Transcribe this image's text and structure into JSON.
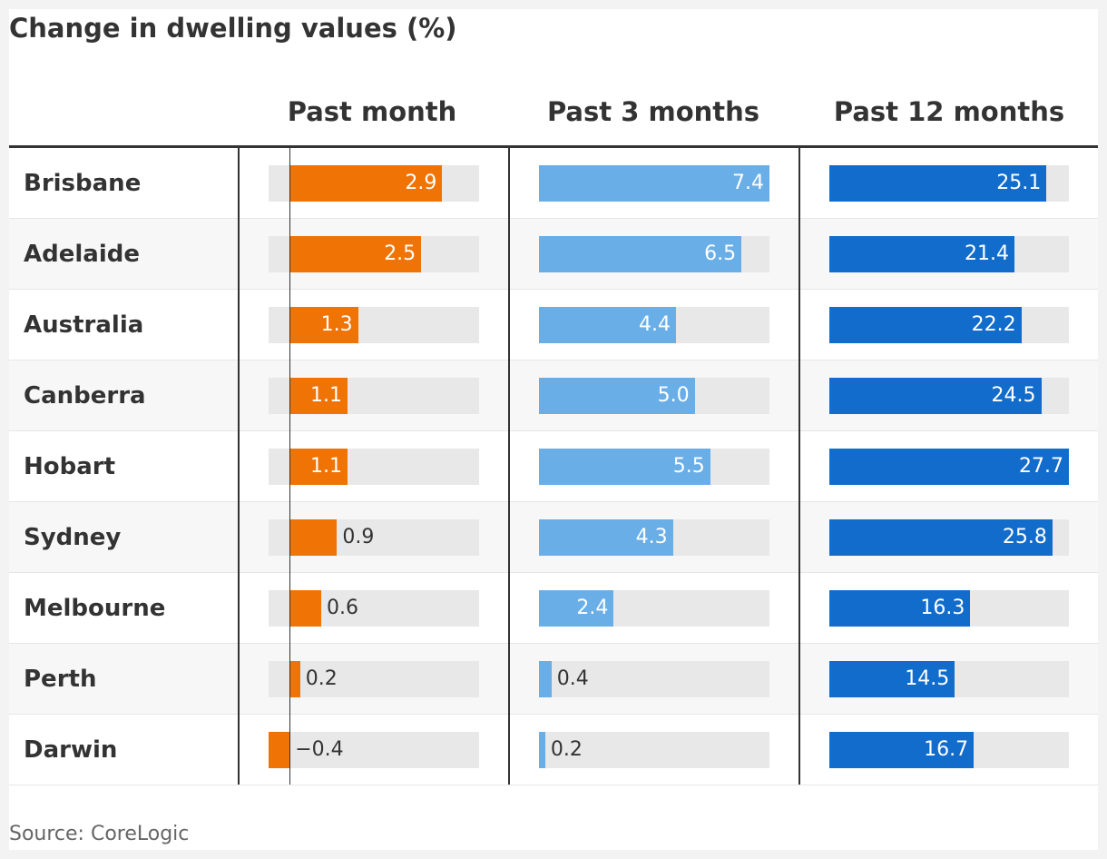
{
  "chart_data": {
    "type": "bar",
    "title": "Change in dwelling values (%)",
    "source": "Source: CoreLogic",
    "categories": [
      "Brisbane",
      "Adelaide",
      "Australia",
      "Canberra",
      "Hobart",
      "Sydney",
      "Melbourne",
      "Perth",
      "Darwin"
    ],
    "series": [
      {
        "name": "Past month",
        "color": "#f07305",
        "xlim": [
          -0.4,
          3.6
        ],
        "values": [
          2.9,
          2.5,
          1.3,
          1.1,
          1.1,
          0.9,
          0.6,
          0.2,
          -0.4
        ],
        "labels": [
          "2.9",
          "2.5",
          "1.3",
          "1.1",
          "1.1",
          "0.9",
          "0.6",
          "0.2",
          "−0.4"
        ]
      },
      {
        "name": "Past 3 months",
        "color": "#6aaee8",
        "xlim": [
          0,
          7.4
        ],
        "values": [
          7.4,
          6.5,
          4.4,
          5.0,
          5.5,
          4.3,
          2.4,
          0.4,
          0.2
        ],
        "labels": [
          "7.4",
          "6.5",
          "4.4",
          "5.0",
          "5.5",
          "4.3",
          "2.4",
          "0.4",
          "0.2"
        ]
      },
      {
        "name": "Past 12 months",
        "color": "#126ccb",
        "xlim": [
          0,
          27.7
        ],
        "values": [
          25.1,
          21.4,
          22.2,
          24.5,
          27.7,
          25.8,
          16.3,
          14.5,
          16.7
        ],
        "labels": [
          "25.1",
          "21.4",
          "22.2",
          "24.5",
          "27.7",
          "25.8",
          "16.3",
          "14.5",
          "16.7"
        ]
      }
    ]
  }
}
